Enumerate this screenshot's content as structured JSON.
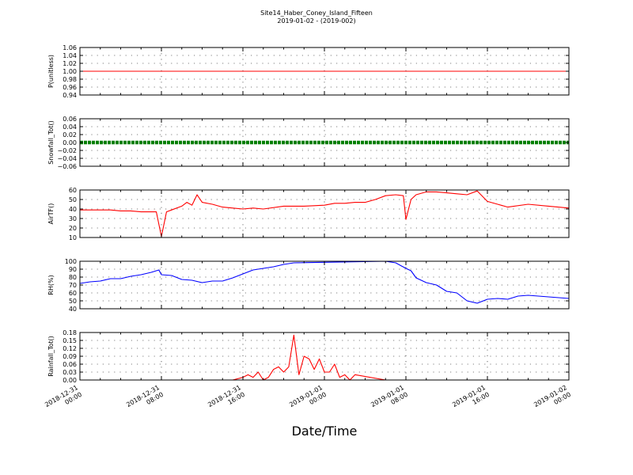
{
  "figure": {
    "title": "Site14_Haber_Coney_Island_Fifteen",
    "subtitle": "2019-01-02 - (2019-002)",
    "xlabel": "Date/Time"
  },
  "x_axis": {
    "range": [
      "2018-12-31 00:00",
      "2019-01-02 00:00"
    ],
    "tick_labels": [
      [
        "2018-12-31",
        "00:00"
      ],
      [
        "2018-12-31",
        "08:00"
      ],
      [
        "2018-12-31",
        "16:00"
      ],
      [
        "2019-01-01",
        "00:00"
      ],
      [
        "2019-01-01",
        "08:00"
      ],
      [
        "2019-01-01",
        "16:00"
      ],
      [
        "2019-01-02",
        "00:00"
      ]
    ]
  },
  "chart_data": [
    {
      "type": "line",
      "ylabel": "P(unitless)",
      "ylim": [
        0.94,
        1.06
      ],
      "yticks": [
        "0.94",
        "0.96",
        "0.98",
        "1.00",
        "1.02",
        "1.04",
        "1.06"
      ],
      "grid": true,
      "color": "#ff0000",
      "x": [
        "2018-12-31 00:00",
        "2019-01-02 00:00"
      ],
      "values": [
        1.0,
        1.0
      ]
    },
    {
      "type": "line",
      "ylabel": "Snowfall_Tot()",
      "ylim": [
        -0.06,
        0.06
      ],
      "yticks": [
        "−0.06",
        "−0.04",
        "−0.02",
        "0.00",
        "0.02",
        "0.04",
        "0.06"
      ],
      "grid": true,
      "color": "#007f00",
      "marker": "dot",
      "x": [
        "2018-12-31 00:00",
        "2019-01-02 00:00"
      ],
      "values": [
        0.0,
        0.0
      ]
    },
    {
      "type": "line",
      "ylabel": "AirTF()",
      "ylim": [
        10,
        60
      ],
      "yticks": [
        "10",
        "20",
        "30",
        "40",
        "50",
        "60"
      ],
      "grid": true,
      "color": "#ff0000",
      "x": [
        "2018-12-31 00:00",
        "2018-12-31 01:00",
        "2018-12-31 02:00",
        "2018-12-31 03:00",
        "2018-12-31 04:00",
        "2018-12-31 05:00",
        "2018-12-31 06:00",
        "2018-12-31 07:30",
        "2018-12-31 08:00",
        "2018-12-31 08:30",
        "2018-12-31 09:00",
        "2018-12-31 10:00",
        "2018-12-31 10:30",
        "2018-12-31 11:00",
        "2018-12-31 11:30",
        "2018-12-31 12:00",
        "2018-12-31 13:00",
        "2018-12-31 14:00",
        "2018-12-31 15:00",
        "2018-12-31 16:00",
        "2018-12-31 17:00",
        "2018-12-31 18:00",
        "2018-12-31 20:00",
        "2018-12-31 22:00",
        "2019-01-01 00:00",
        "2019-01-01 01:00",
        "2019-01-01 02:00",
        "2019-01-01 03:00",
        "2019-01-01 04:00",
        "2019-01-01 05:00",
        "2019-01-01 06:00",
        "2019-01-01 07:00",
        "2019-01-01 07:45",
        "2019-01-01 08:00",
        "2019-01-01 08:30",
        "2019-01-01 09:00",
        "2019-01-01 10:00",
        "2019-01-01 11:00",
        "2019-01-01 12:00",
        "2019-01-01 13:00",
        "2019-01-01 14:00",
        "2019-01-01 15:00",
        "2019-01-01 16:00",
        "2019-01-01 17:00",
        "2019-01-01 18:00",
        "2019-01-01 20:00",
        "2019-01-01 22:00",
        "2019-01-02 00:00"
      ],
      "values": [
        39,
        39,
        39,
        39,
        38,
        38,
        37,
        37,
        11,
        37,
        39,
        43,
        47,
        44,
        55,
        47,
        45,
        42,
        41,
        40,
        41,
        40,
        43,
        43,
        44,
        46,
        46,
        47,
        47,
        50,
        54,
        55,
        54,
        29,
        50,
        55,
        58,
        58,
        57,
        56,
        55,
        59,
        48,
        45,
        42,
        45,
        43,
        41
      ]
    },
    {
      "type": "line",
      "ylabel": "RH(%)",
      "ylim": [
        40,
        100
      ],
      "yticks": [
        "40",
        "50",
        "60",
        "70",
        "80",
        "90",
        "100"
      ],
      "grid": true,
      "color": "#0000ff",
      "x": [
        "2018-12-31 00:00",
        "2018-12-31 01:00",
        "2018-12-31 02:00",
        "2018-12-31 03:00",
        "2018-12-31 04:00",
        "2018-12-31 05:00",
        "2018-12-31 06:00",
        "2018-12-31 07:00",
        "2018-12-31 07:45",
        "2018-12-31 08:00",
        "2018-12-31 09:00",
        "2018-12-31 10:00",
        "2018-12-31 11:00",
        "2018-12-31 12:00",
        "2018-12-31 13:00",
        "2018-12-31 14:00",
        "2018-12-31 15:00",
        "2018-12-31 16:00",
        "2018-12-31 17:00",
        "2018-12-31 18:00",
        "2018-12-31 19:00",
        "2018-12-31 20:00",
        "2018-12-31 21:00",
        "2019-01-01 06:00",
        "2019-01-01 07:00",
        "2019-01-01 08:00",
        "2019-01-01 08:30",
        "2019-01-01 09:00",
        "2019-01-01 10:00",
        "2019-01-01 11:00",
        "2019-01-01 12:00",
        "2019-01-01 13:00",
        "2019-01-01 14:00",
        "2019-01-01 15:00",
        "2019-01-01 16:00",
        "2019-01-01 17:00",
        "2019-01-01 18:00",
        "2019-01-01 19:00",
        "2019-01-01 20:00",
        "2019-01-01 22:00",
        "2019-01-02 00:00"
      ],
      "values": [
        72,
        74,
        75,
        78,
        78,
        81,
        83,
        86,
        89,
        83,
        82,
        77,
        76,
        73,
        75,
        75,
        79,
        84,
        89,
        91,
        93,
        96,
        98,
        100,
        98,
        91,
        88,
        79,
        73,
        70,
        62,
        60,
        50,
        47,
        52,
        53,
        52,
        56,
        57,
        55,
        53
      ]
    },
    {
      "type": "line",
      "ylabel": "Rainfall_Tot()",
      "ylim": [
        0.0,
        0.18
      ],
      "yticks": [
        "0.00",
        "0.03",
        "0.06",
        "0.09",
        "0.12",
        "0.15",
        "0.18"
      ],
      "grid": true,
      "color": "#ff0000",
      "x": [
        "2018-12-31 00:00",
        "2018-12-31 15:00",
        "2018-12-31 16:00",
        "2018-12-31 16:30",
        "2018-12-31 17:00",
        "2018-12-31 17:30",
        "2018-12-31 18:00",
        "2018-12-31 18:30",
        "2018-12-31 19:00",
        "2018-12-31 19:30",
        "2018-12-31 20:00",
        "2018-12-31 20:30",
        "2018-12-31 21:00",
        "2018-12-31 21:30",
        "2018-12-31 22:00",
        "2018-12-31 22:30",
        "2018-12-31 23:00",
        "2018-12-31 23:30",
        "2019-01-01 00:00",
        "2019-01-01 00:30",
        "2019-01-01 01:00",
        "2019-01-01 01:30",
        "2019-01-01 02:00",
        "2019-01-01 02:30",
        "2019-01-01 03:00",
        "2019-01-01 06:00",
        "2019-01-01 16:00",
        "2019-01-02 00:00"
      ],
      "values": [
        0,
        0,
        0.01,
        0.02,
        0.01,
        0.03,
        0,
        0.01,
        0.04,
        0.05,
        0.03,
        0.05,
        0.17,
        0.02,
        0.09,
        0.08,
        0.04,
        0.08,
        0.03,
        0.03,
        0.06,
        0.01,
        0.02,
        0,
        0.02,
        0,
        0,
        0
      ]
    }
  ]
}
